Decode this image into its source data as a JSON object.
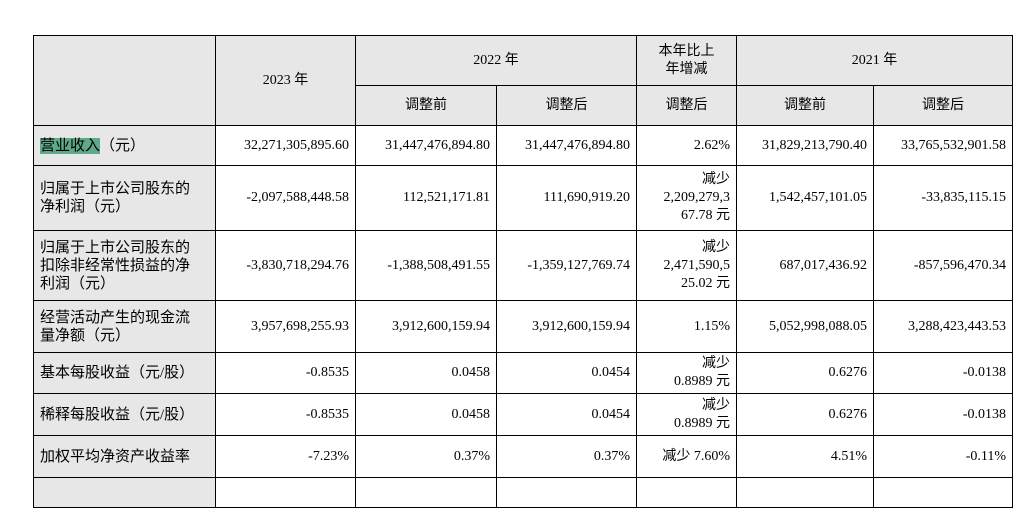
{
  "table": {
    "header": [
      [
        "2023 年",
        "2022 年",
        "本年比上\n年增减",
        "2021 年"
      ],
      [
        "调整前",
        "调整后",
        "调整后",
        "调整前",
        "调整后"
      ]
    ],
    "rows": [
      {
        "label": [
          "营业收入",
          "（元）"
        ],
        "values": [
          "32,271,305,895.60",
          "31,447,476,894.80",
          "31,447,476,894.80",
          "2.62%",
          "31,829,213,790.40",
          "33,765,532,901.58"
        ]
      },
      {
        "label": "归属于上市公司股东的\n净利润（元）",
        "values": [
          "-2,097,588,448.58",
          "112,521,171.81",
          "111,690,919.20",
          "减少\n2,209,279,3\n67.78 元",
          "1,542,457,101.05",
          "-33,835,115.15"
        ]
      },
      {
        "label": "归属于上市公司股东的\n扣除非经常性损益的净\n利润（元）",
        "values": [
          "-3,830,718,294.76",
          "-1,388,508,491.55",
          "-1,359,127,769.74",
          "减少\n2,471,590,5\n25.02 元",
          "687,017,436.92",
          "-857,596,470.34"
        ]
      },
      {
        "label": "经营活动产生的现金流\n量净额（元）",
        "values": [
          "3,957,698,255.93",
          "3,912,600,159.94",
          "3,912,600,159.94",
          "1.15%",
          "5,052,998,088.05",
          "3,288,423,443.53"
        ]
      },
      {
        "label": "基本每股收益（元/股）",
        "values": [
          "-0.8535",
          "0.0458",
          "0.0454",
          "减少\n0.8989 元",
          "0.6276",
          "-0.0138"
        ]
      },
      {
        "label": "稀释每股收益（元/股）",
        "values": [
          "-0.8535",
          "0.0458",
          "0.0454",
          "减少\n0.8989 元",
          "0.6276",
          "-0.0138"
        ]
      },
      {
        "label": "加权平均净资产收益率",
        "values": [
          "-7.23%",
          "0.37%",
          "0.37%",
          "减少 7.60%",
          "4.51%",
          "-0.11%"
        ]
      }
    ]
  }
}
